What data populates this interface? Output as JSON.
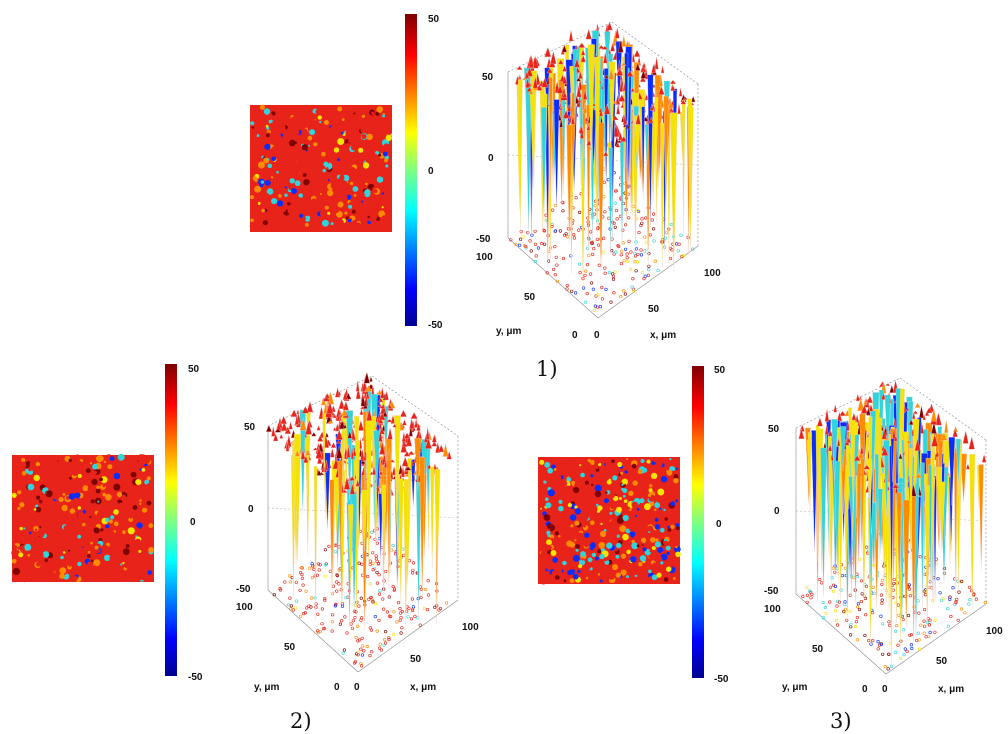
{
  "colormap": {
    "dark_red": "#7f0000",
    "red": "#e8231a",
    "orange": "#ff8c00",
    "yellow": "#f4e200",
    "cyan": "#2fd4dc",
    "blue": "#0a2dff",
    "dark_blue": "#00008f"
  },
  "chart_data": [
    {
      "type": "heatmap",
      "panel_label": "1)",
      "colorbar": {
        "min": -50,
        "max": 50,
        "ticks": [
          50,
          0,
          -50
        ]
      },
      "low_fraction": 0.18,
      "surface": {
        "z_ticks": [
          50,
          0,
          -50
        ],
        "y_ticks": [
          100,
          50,
          0
        ],
        "x_ticks": [
          0,
          50,
          100
        ],
        "xlabel": "x, μm",
        "ylabel": "y, μm"
      }
    },
    {
      "type": "heatmap",
      "panel_label": "2)",
      "colorbar": {
        "min": -50,
        "max": 50,
        "ticks": [
          50,
          0,
          -50
        ]
      },
      "low_fraction": 0.14,
      "surface": {
        "z_ticks": [
          50,
          0,
          -50
        ],
        "y_ticks": [
          100,
          50,
          0
        ],
        "x_ticks": [
          0,
          50,
          100
        ],
        "xlabel": "x, μm",
        "ylabel": "y, μm"
      }
    },
    {
      "type": "heatmap",
      "panel_label": "3)",
      "colorbar": {
        "min": -50,
        "max": 50,
        "ticks": [
          50,
          0,
          -50
        ]
      },
      "low_fraction": 0.32,
      "surface": {
        "z_ticks": [
          50,
          0,
          -50
        ],
        "y_ticks": [
          100,
          50,
          0
        ],
        "x_ticks": [
          0,
          50,
          100
        ],
        "xlabel": "x, μm",
        "ylabel": "y, μm"
      }
    }
  ]
}
